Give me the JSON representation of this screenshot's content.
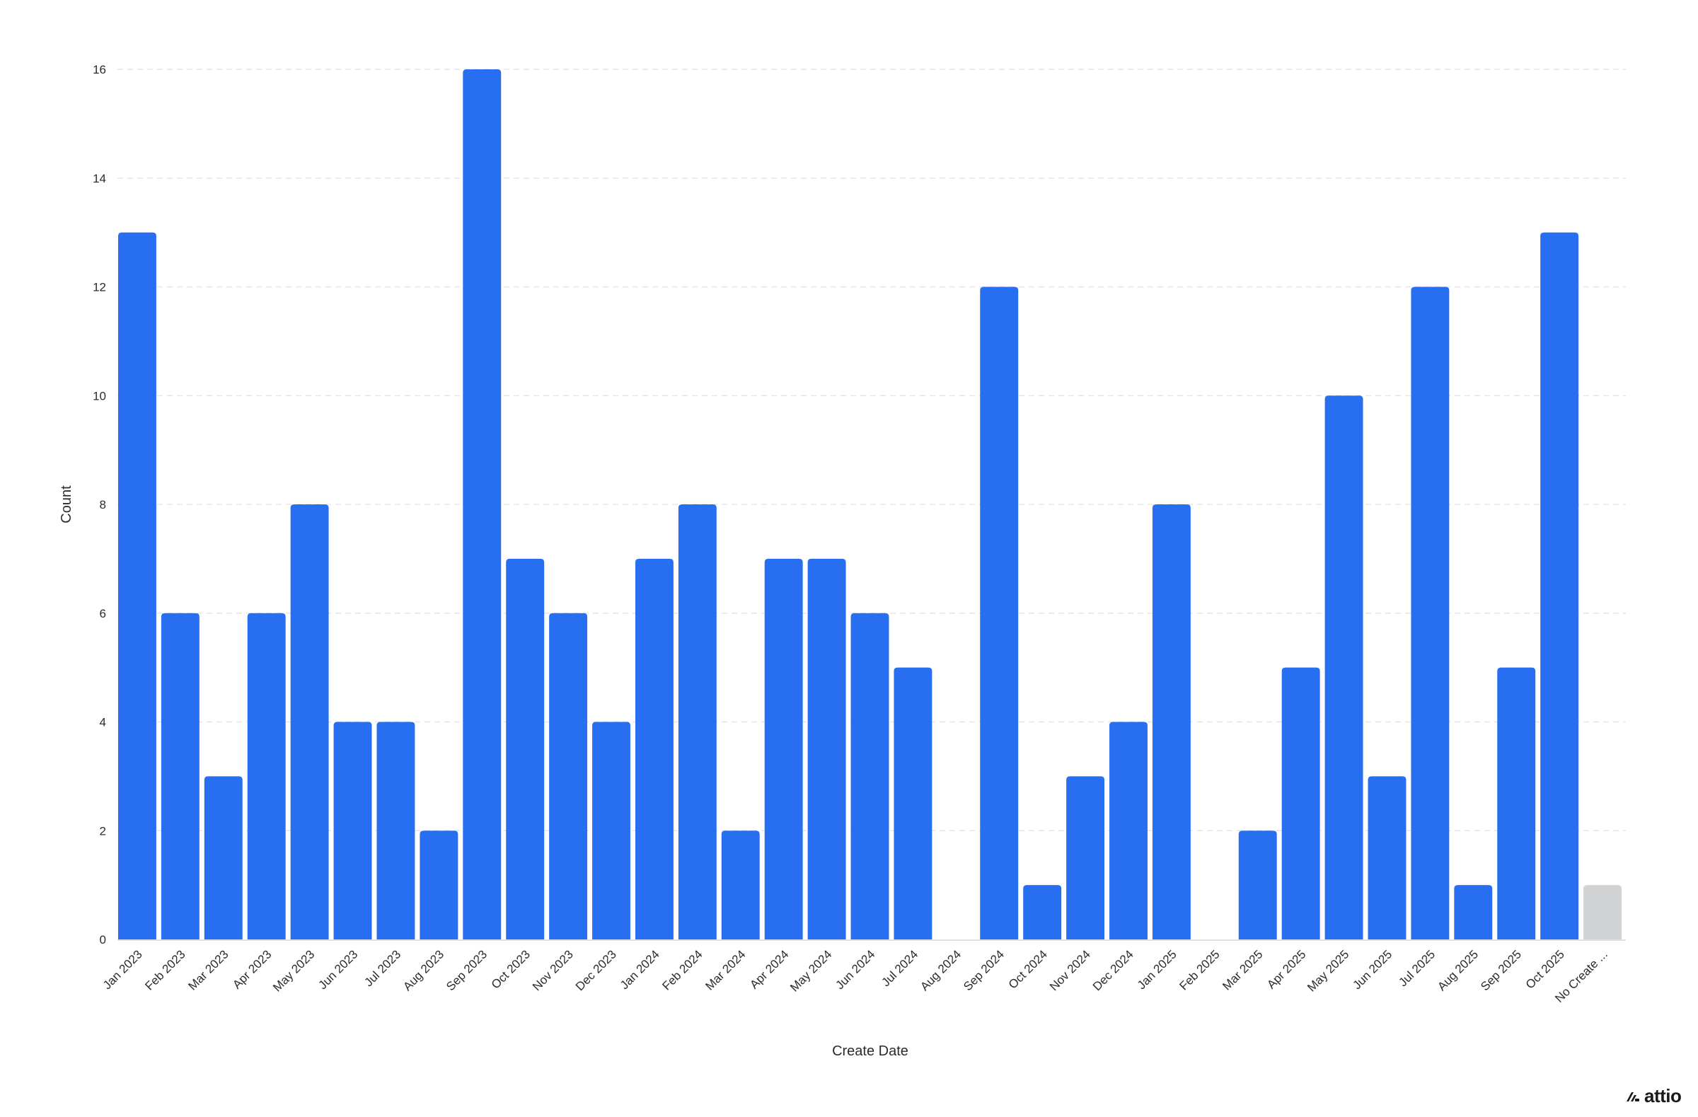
{
  "chart_data": {
    "type": "bar",
    "xlabel": "Create Date",
    "ylabel": "Count",
    "ylim": [
      0,
      16
    ],
    "yticks": [
      0,
      2,
      4,
      6,
      8,
      10,
      12,
      14,
      16
    ],
    "grid": true,
    "categories": [
      "Jan 2023",
      "Feb 2023",
      "Mar 2023",
      "Apr 2023",
      "May 2023",
      "Jun 2023",
      "Jul 2023",
      "Aug 2023",
      "Sep 2023",
      "Oct 2023",
      "Nov 2023",
      "Dec 2023",
      "Jan 2024",
      "Feb 2024",
      "Mar 2024",
      "Apr 2024",
      "May 2024",
      "Jun 2024",
      "Jul 2024",
      "Aug 2024",
      "Sep 2024",
      "Oct 2024",
      "Nov 2024",
      "Dec 2024",
      "Jan 2025",
      "Feb 2025",
      "Mar 2025",
      "Apr 2025",
      "May 2025",
      "Jun 2025",
      "Jul 2025",
      "Aug 2025",
      "Sep 2025",
      "Oct 2025",
      "No Create ..."
    ],
    "values": [
      13,
      6,
      3,
      6,
      8,
      4,
      4,
      2,
      16,
      7,
      6,
      4,
      7,
      8,
      2,
      7,
      7,
      6,
      5,
      0,
      12,
      1,
      3,
      4,
      8,
      0,
      2,
      5,
      10,
      3,
      12,
      1,
      5,
      13,
      1
    ],
    "colors": {
      "bar": "#276ef1",
      "empty_bar": "#d2d3d5"
    },
    "empty_category_index": 34
  },
  "branding": {
    "logo_text": "attio",
    "logo_icon": "attio-logo-icon"
  }
}
